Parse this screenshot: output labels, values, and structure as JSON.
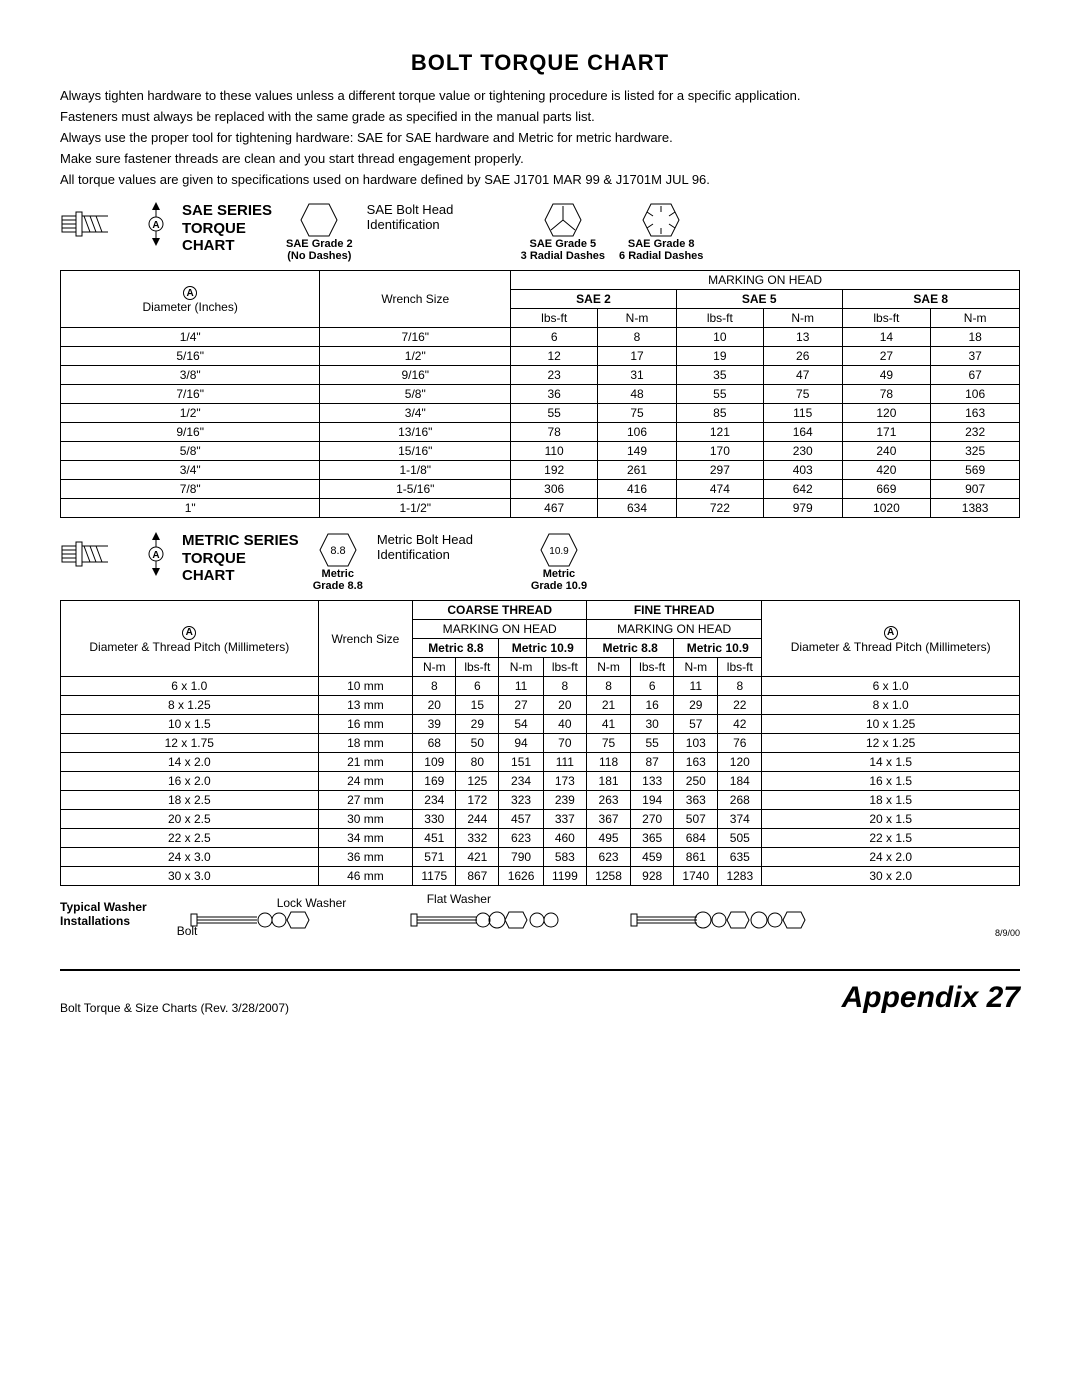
{
  "title": "BOLT TORQUE CHART",
  "intro": [
    "Always tighten hardware to these values unless a different torque value or tightening procedure is listed for a specific application.",
    "Fasteners must always be replaced with the same grade as specified in the manual parts list.",
    "Always use the proper tool for tightening hardware: SAE for SAE hardware and Metric for metric hardware.",
    "Make sure fastener threads are clean and you start thread engagement properly.",
    "All torque values are given to specifications used on hardware defined by SAE J1701 MAR 99 & J1701M JUL 96."
  ],
  "sae": {
    "series_title_1": "SAE SERIES",
    "series_title_2": "TORQUE",
    "series_title_3": "CHART",
    "head_id_label": "SAE Bolt Head Identification",
    "grades": [
      {
        "line1": "SAE Grade 2",
        "line2": "(No Dashes)"
      },
      {
        "line1": "SAE Grade 5",
        "line2": "3 Radial Dashes"
      },
      {
        "line1": "SAE Grade 8",
        "line2": "6 Radial Dashes"
      }
    ],
    "table": {
      "marking_on_head": "MARKING ON HEAD",
      "col_diameter": "Diameter (Inches)",
      "col_wrench": "Wrench Size",
      "grade_cols": [
        "SAE 2",
        "SAE 5",
        "SAE 8"
      ],
      "unit_cols": [
        "lbs-ft",
        "N-m"
      ],
      "rows": [
        {
          "dia": "1/4\"",
          "wrench": "7/16\"",
          "v": [
            6,
            8,
            10,
            13,
            14,
            18
          ]
        },
        {
          "dia": "5/16\"",
          "wrench": "1/2\"",
          "v": [
            12,
            17,
            19,
            26,
            27,
            37
          ]
        },
        {
          "dia": "3/8\"",
          "wrench": "9/16\"",
          "v": [
            23,
            31,
            35,
            47,
            49,
            67
          ]
        },
        {
          "dia": "7/16\"",
          "wrench": "5/8\"",
          "v": [
            36,
            48,
            55,
            75,
            78,
            106
          ]
        },
        {
          "dia": "1/2\"",
          "wrench": "3/4\"",
          "v": [
            55,
            75,
            85,
            115,
            120,
            163
          ]
        },
        {
          "dia": "9/16\"",
          "wrench": "13/16\"",
          "v": [
            78,
            106,
            121,
            164,
            171,
            232
          ]
        },
        {
          "dia": "5/8\"",
          "wrench": "15/16\"",
          "v": [
            110,
            149,
            170,
            230,
            240,
            325
          ]
        },
        {
          "dia": "3/4\"",
          "wrench": "1-1/8\"",
          "v": [
            192,
            261,
            297,
            403,
            420,
            569
          ]
        },
        {
          "dia": "7/8\"",
          "wrench": "1-5/16\"",
          "v": [
            306,
            416,
            474,
            642,
            669,
            907
          ]
        },
        {
          "dia": "1\"",
          "wrench": "1-1/2\"",
          "v": [
            467,
            634,
            722,
            979,
            1020,
            1383
          ]
        }
      ]
    }
  },
  "metric": {
    "series_title_1": "METRIC SERIES",
    "series_title_2": "TORQUE",
    "series_title_3": "CHART",
    "head_id_label": "Metric Bolt Head Identification",
    "grades": [
      {
        "stamp": "8.8",
        "line1": "Metric",
        "line2": "Grade 8.8"
      },
      {
        "stamp": "10.9",
        "line1": "Metric",
        "line2": "Grade 10.9"
      }
    ],
    "table": {
      "coarse": "COARSE THREAD",
      "fine": "FINE THREAD",
      "marking_on_head": "MARKING ON HEAD",
      "col_dia": "Diameter & Thread Pitch (Millimeters)",
      "col_wrench": "Wrench Size",
      "grade_cols": [
        "Metric 8.8",
        "Metric 10.9"
      ],
      "unit_cols": [
        "N-m",
        "lbs-ft"
      ],
      "rows": [
        {
          "dia": "6 x 1.0",
          "wrench": "10 mm",
          "c": [
            8,
            6,
            11,
            8
          ],
          "f": [
            8,
            6,
            11,
            8
          ],
          "diaF": "6 x 1.0"
        },
        {
          "dia": "8 x 1.25",
          "wrench": "13 mm",
          "c": [
            20,
            15,
            27,
            20
          ],
          "f": [
            21,
            16,
            29,
            22
          ],
          "diaF": "8 x 1.0"
        },
        {
          "dia": "10 x 1.5",
          "wrench": "16 mm",
          "c": [
            39,
            29,
            54,
            40
          ],
          "f": [
            41,
            30,
            57,
            42
          ],
          "diaF": "10 x 1.25"
        },
        {
          "dia": "12 x 1.75",
          "wrench": "18 mm",
          "c": [
            68,
            50,
            94,
            70
          ],
          "f": [
            75,
            55,
            103,
            76
          ],
          "diaF": "12 x 1.25"
        },
        {
          "dia": "14 x 2.0",
          "wrench": "21 mm",
          "c": [
            109,
            80,
            151,
            111
          ],
          "f": [
            118,
            87,
            163,
            120
          ],
          "diaF": "14 x 1.5"
        },
        {
          "dia": "16 x 2.0",
          "wrench": "24 mm",
          "c": [
            169,
            125,
            234,
            173
          ],
          "f": [
            181,
            133,
            250,
            184
          ],
          "diaF": "16 x 1.5"
        },
        {
          "dia": "18 x 2.5",
          "wrench": "27 mm",
          "c": [
            234,
            172,
            323,
            239
          ],
          "f": [
            263,
            194,
            363,
            268
          ],
          "diaF": "18 x 1.5"
        },
        {
          "dia": "20 x 2.5",
          "wrench": "30 mm",
          "c": [
            330,
            244,
            457,
            337
          ],
          "f": [
            367,
            270,
            507,
            374
          ],
          "diaF": "20 x 1.5"
        },
        {
          "dia": "22 x 2.5",
          "wrench": "34 mm",
          "c": [
            451,
            332,
            623,
            460
          ],
          "f": [
            495,
            365,
            684,
            505
          ],
          "diaF": "22 x 1.5"
        },
        {
          "dia": "24 x 3.0",
          "wrench": "36 mm",
          "c": [
            571,
            421,
            790,
            583
          ],
          "f": [
            623,
            459,
            861,
            635
          ],
          "diaF": "24 x 2.0"
        },
        {
          "dia": "30 x 3.0",
          "wrench": "46 mm",
          "c": [
            1175,
            867,
            1626,
            1199
          ],
          "f": [
            1258,
            928,
            1740,
            1283
          ],
          "diaF": "30 x 2.0"
        }
      ]
    }
  },
  "washer": {
    "title1": "Typical Washer",
    "title2": "Installations",
    "bolt": "Bolt",
    "lock": "Lock Washer",
    "flat": "Flat Washer",
    "date": "8/9/00"
  },
  "footer": {
    "rev": "Bolt Torque & Size Charts (Rev. 3/28/2007)",
    "appendix_label": "Appendix",
    "appendix_num": "27"
  }
}
